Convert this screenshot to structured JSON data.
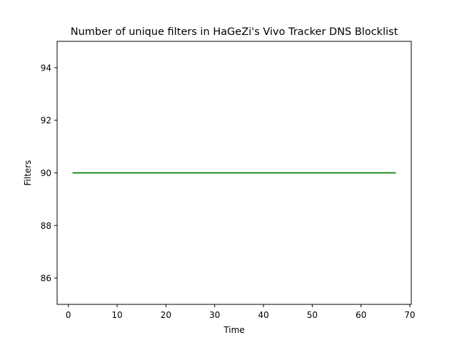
{
  "chart_data": {
    "type": "line",
    "title": "Number of unique filters in HaGeZi's Vivo Tracker DNS Blocklist",
    "xlabel": "Time",
    "ylabel": "Filters",
    "xlim": [
      -2.3,
      70.3
    ],
    "ylim": [
      85,
      95
    ],
    "xticks": [
      0,
      10,
      20,
      30,
      40,
      50,
      60,
      70
    ],
    "yticks": [
      86,
      88,
      90,
      92,
      94
    ],
    "grid": false,
    "series": [
      {
        "color": "#008000",
        "x": [
          1,
          67
        ],
        "y": [
          90,
          90
        ]
      }
    ]
  }
}
